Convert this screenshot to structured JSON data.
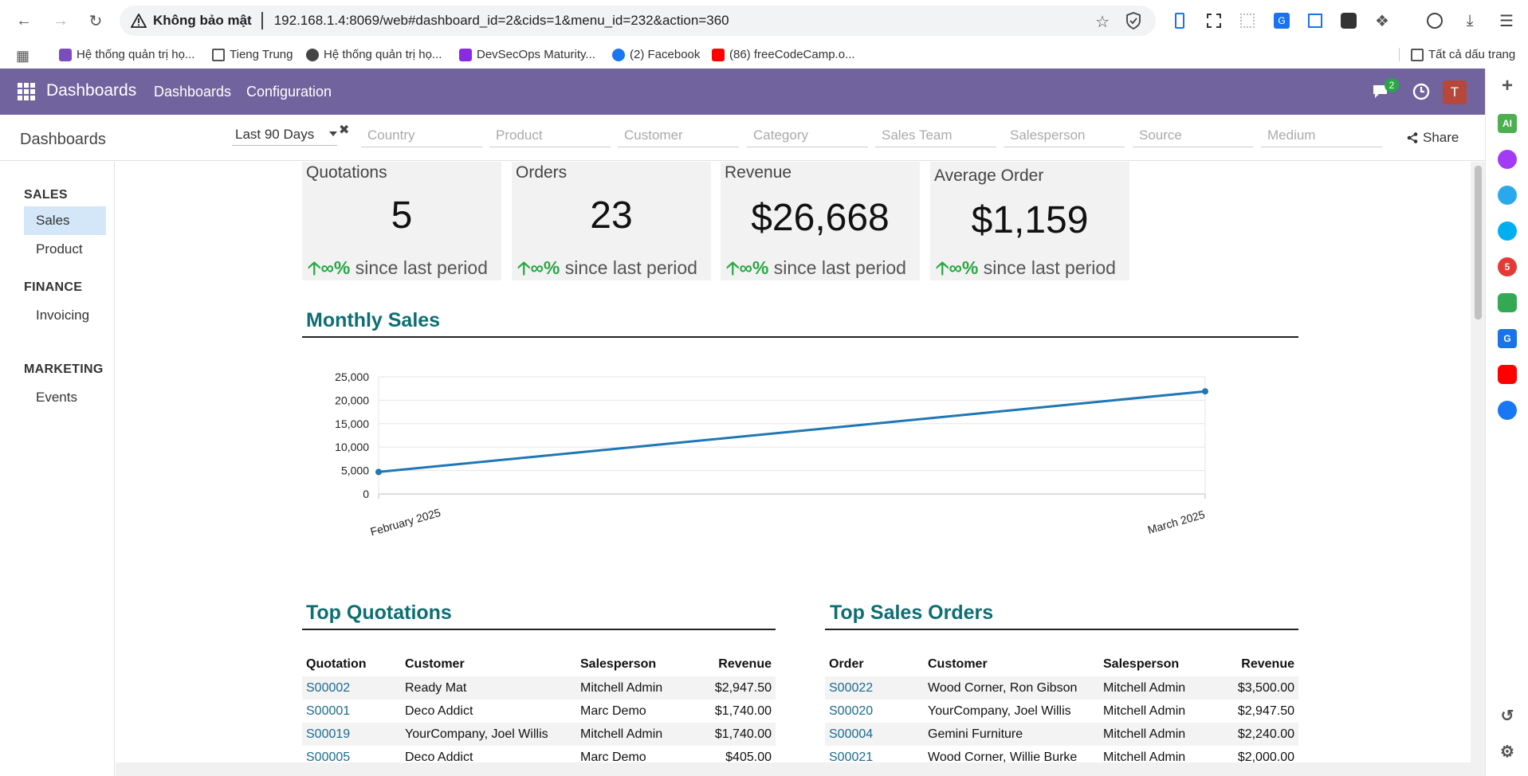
{
  "browser": {
    "security_label": "Không bảo mật",
    "url": "192.168.1.4:8069/web#dashboard_id=2&cids=1&menu_id=232&action=360",
    "bookmarks": [
      {
        "label": "Hệ thống quản trị họ...",
        "icon": "odoo-icon"
      },
      {
        "label": "Tieng Trung",
        "icon": "folder-icon"
      },
      {
        "label": "Hệ thống quản trị họ...",
        "icon": "globe-icon"
      },
      {
        "label": "DevSecOps Maturity...",
        "icon": "devsecops-icon"
      },
      {
        "label": "(2) Facebook",
        "icon": "facebook-icon"
      },
      {
        "label": "(86) freeCodeCamp.o...",
        "icon": "youtube-icon"
      }
    ],
    "all_bookmarks_label": "Tất cả dấu trang"
  },
  "app": {
    "brand": "Dashboards",
    "menu": [
      "Dashboards",
      "Configuration"
    ],
    "chat_count": "2",
    "user_initial": "T",
    "accent": "#71639e"
  },
  "control": {
    "title": "Dashboards",
    "period": "Last 90 Days",
    "filters": [
      "Country",
      "Product",
      "Customer",
      "Category",
      "Sales Team",
      "Salesperson",
      "Source",
      "Medium"
    ],
    "share_label": "Share"
  },
  "leftnav": {
    "sections": [
      {
        "title": "SALES",
        "items": [
          "Sales",
          "Product"
        ]
      },
      {
        "title": "FINANCE",
        "items": [
          "Invoicing"
        ]
      },
      {
        "title": "MARKETING",
        "items": [
          "Events"
        ]
      }
    ],
    "active": "Sales"
  },
  "kpis": [
    {
      "title": "Quotations",
      "value": "5",
      "trend_symbol": "∞%",
      "trend_text": "since last period"
    },
    {
      "title": "Orders",
      "value": "23",
      "trend_symbol": "∞%",
      "trend_text": "since last period"
    },
    {
      "title": "Revenue",
      "value": "$26,668",
      "trend_symbol": "∞%",
      "trend_text": "since last period"
    },
    {
      "title": "Average Order",
      "value": "$1,159",
      "trend_symbol": "∞%",
      "trend_text": "since last period"
    }
  ],
  "monthly_sales": {
    "title": "Monthly Sales"
  },
  "chart_data": {
    "type": "line",
    "title": "Monthly Sales",
    "x": [
      "February 2025",
      "March 2025"
    ],
    "series": [
      {
        "values": [
          4700,
          21900
        ],
        "color": "#1f77b4"
      }
    ],
    "ylim": [
      0,
      25000
    ],
    "yticks": [
      "0",
      "5,000",
      "10,000",
      "15,000",
      "20,000",
      "25,000"
    ],
    "grid": true
  },
  "top_quotations": {
    "title": "Top Quotations",
    "columns": [
      "Quotation",
      "Customer",
      "Salesperson",
      "Revenue"
    ],
    "rows": [
      [
        "S00002",
        "Ready Mat",
        "Mitchell Admin",
        "$2,947.50"
      ],
      [
        "S00001",
        "Deco Addict",
        "Marc Demo",
        "$1,740.00"
      ],
      [
        "S00019",
        "YourCompany, Joel Willis",
        "Mitchell Admin",
        "$1,740.00"
      ],
      [
        "S00005",
        "Deco Addict",
        "Marc Demo",
        "$405.00"
      ]
    ]
  },
  "top_sales_orders": {
    "title": "Top Sales Orders",
    "columns": [
      "Order",
      "Customer",
      "Salesperson",
      "Revenue"
    ],
    "rows": [
      [
        "S00022",
        "Wood Corner, Ron Gibson",
        "Mitchell Admin",
        "$3,500.00"
      ],
      [
        "S00020",
        "YourCompany, Joel Willis",
        "Mitchell Admin",
        "$2,947.50"
      ],
      [
        "S00004",
        "Gemini Furniture",
        "Mitchell Admin",
        "$2,240.00"
      ],
      [
        "S00021",
        "Wood Corner, Willie Burke",
        "Mitchell Admin",
        "$2,000.00"
      ]
    ]
  }
}
